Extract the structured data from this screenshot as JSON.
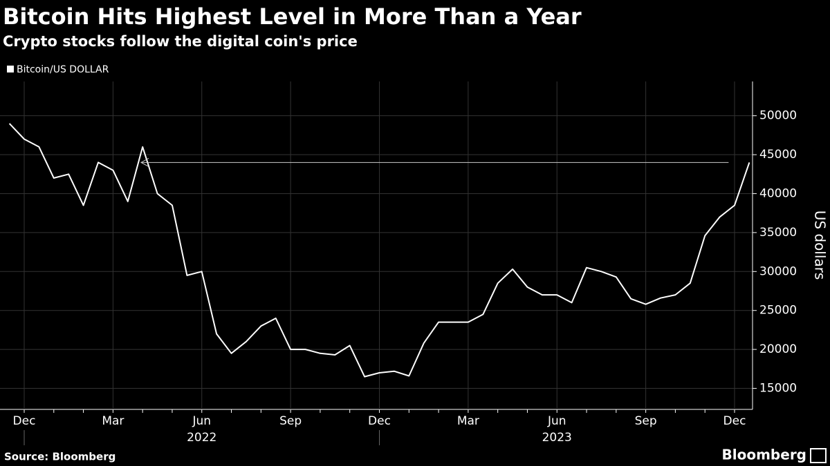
{
  "chart_data": {
    "type": "line",
    "title": "Bitcoin Hits Highest Level in More Than a Year",
    "subtitle": "Crypto stocks follow the digital coin's price",
    "y_label": "US dollars",
    "source": "Source: Bloomberg",
    "brand": "Bloomberg",
    "categories": [
      null,
      "Dec",
      null,
      null,
      null,
      null,
      null,
      "Mar",
      null,
      null,
      null,
      null,
      null,
      "Jun",
      null,
      null,
      null,
      null,
      null,
      "Sep",
      null,
      null,
      null,
      null,
      null,
      "Dec",
      null,
      null,
      null,
      null,
      null,
      "Mar",
      null,
      null,
      null,
      null,
      null,
      "Jun",
      null,
      null,
      null,
      null,
      null,
      "Sep",
      null,
      null,
      null,
      null,
      null,
      "Dec",
      null
    ],
    "x_groups": [
      "2022",
      "2023"
    ],
    "series": [
      {
        "name": "Bitcoin/US DOLLAR",
        "color": "#ffffff",
        "values": [
          49000,
          47000,
          46000,
          42000,
          42500,
          38500,
          44000,
          43000,
          39000,
          46000,
          40000,
          38500,
          29500,
          30000,
          22000,
          19500,
          21000,
          23000,
          24000,
          20000,
          20000,
          19500,
          19300,
          20500,
          16500,
          17000,
          17200,
          16600,
          20800,
          23500,
          23500,
          23500,
          24500,
          28500,
          30300,
          28000,
          27000,
          27000,
          26000,
          30500,
          30000,
          29300,
          26500,
          25800,
          26600,
          27000,
          28500,
          34600,
          37000,
          38500,
          44000
        ]
      }
    ],
    "ylim": [
      12300,
      54400
    ],
    "yticks": [
      15000,
      20000,
      25000,
      30000,
      35000,
      40000,
      45000,
      50000
    ],
    "grid": true
  }
}
